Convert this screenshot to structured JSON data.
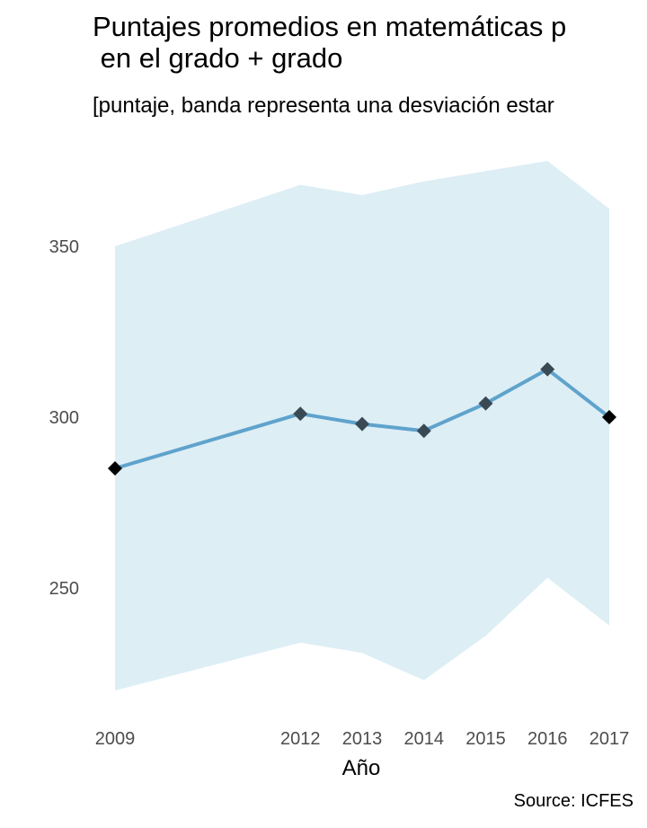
{
  "chart_data": {
    "type": "line",
    "title": "Puntajes promedios en matemáticas p\n en el grado + grado",
    "subtitle": "[puntaje, banda representa una desviación estar",
    "xlabel": "Año",
    "ylabel": "",
    "caption": "Source: ICFES",
    "x": [
      2009,
      2012,
      2013,
      2014,
      2015,
      2016,
      2017
    ],
    "x_tick_labels": [
      "2009",
      "2012",
      "2013",
      "2014",
      "2015",
      "2016",
      "2017"
    ],
    "series": [
      {
        "values": [
          285,
          301,
          298,
          296,
          304,
          314,
          300
        ],
        "band_upper": [
          350,
          368,
          365,
          369,
          372,
          375,
          361
        ],
        "band_lower": [
          220,
          234,
          231,
          223,
          236,
          253,
          239
        ]
      }
    ],
    "y_ticks": [
      250,
      300,
      350
    ],
    "ylim": [
      210,
      385
    ],
    "grid": false,
    "colors": {
      "line": "#5fa3cc",
      "band": "#ddeef5",
      "marker": "#3a4a55",
      "marker_end": "#000000"
    }
  }
}
